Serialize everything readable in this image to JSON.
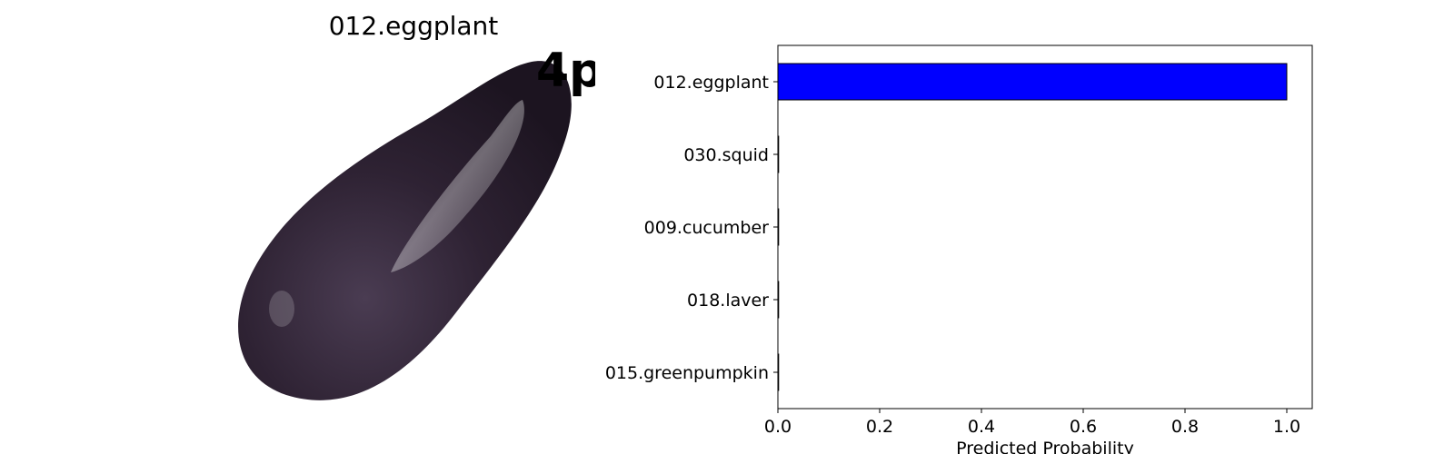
{
  "image_panel": {
    "title": "012.eggplant",
    "overlay_text": "4p"
  },
  "colors": {
    "bar": "#0000ff",
    "eggplant": "#2e2233"
  },
  "chart_data": {
    "type": "bar",
    "orientation": "horizontal",
    "categories": [
      "012.eggplant",
      "030.squid",
      "009.cucumber",
      "018.laver",
      "015.greenpumpkin"
    ],
    "values": [
      1.0,
      0.0,
      0.0,
      0.0,
      0.0
    ],
    "title": "",
    "xlabel": "Predicted Probability",
    "ylabel": "",
    "xlim": [
      0.0,
      1.05
    ],
    "xticks": [
      "0.0",
      "0.2",
      "0.4",
      "0.6",
      "0.8",
      "1.0"
    ],
    "grid": false
  }
}
